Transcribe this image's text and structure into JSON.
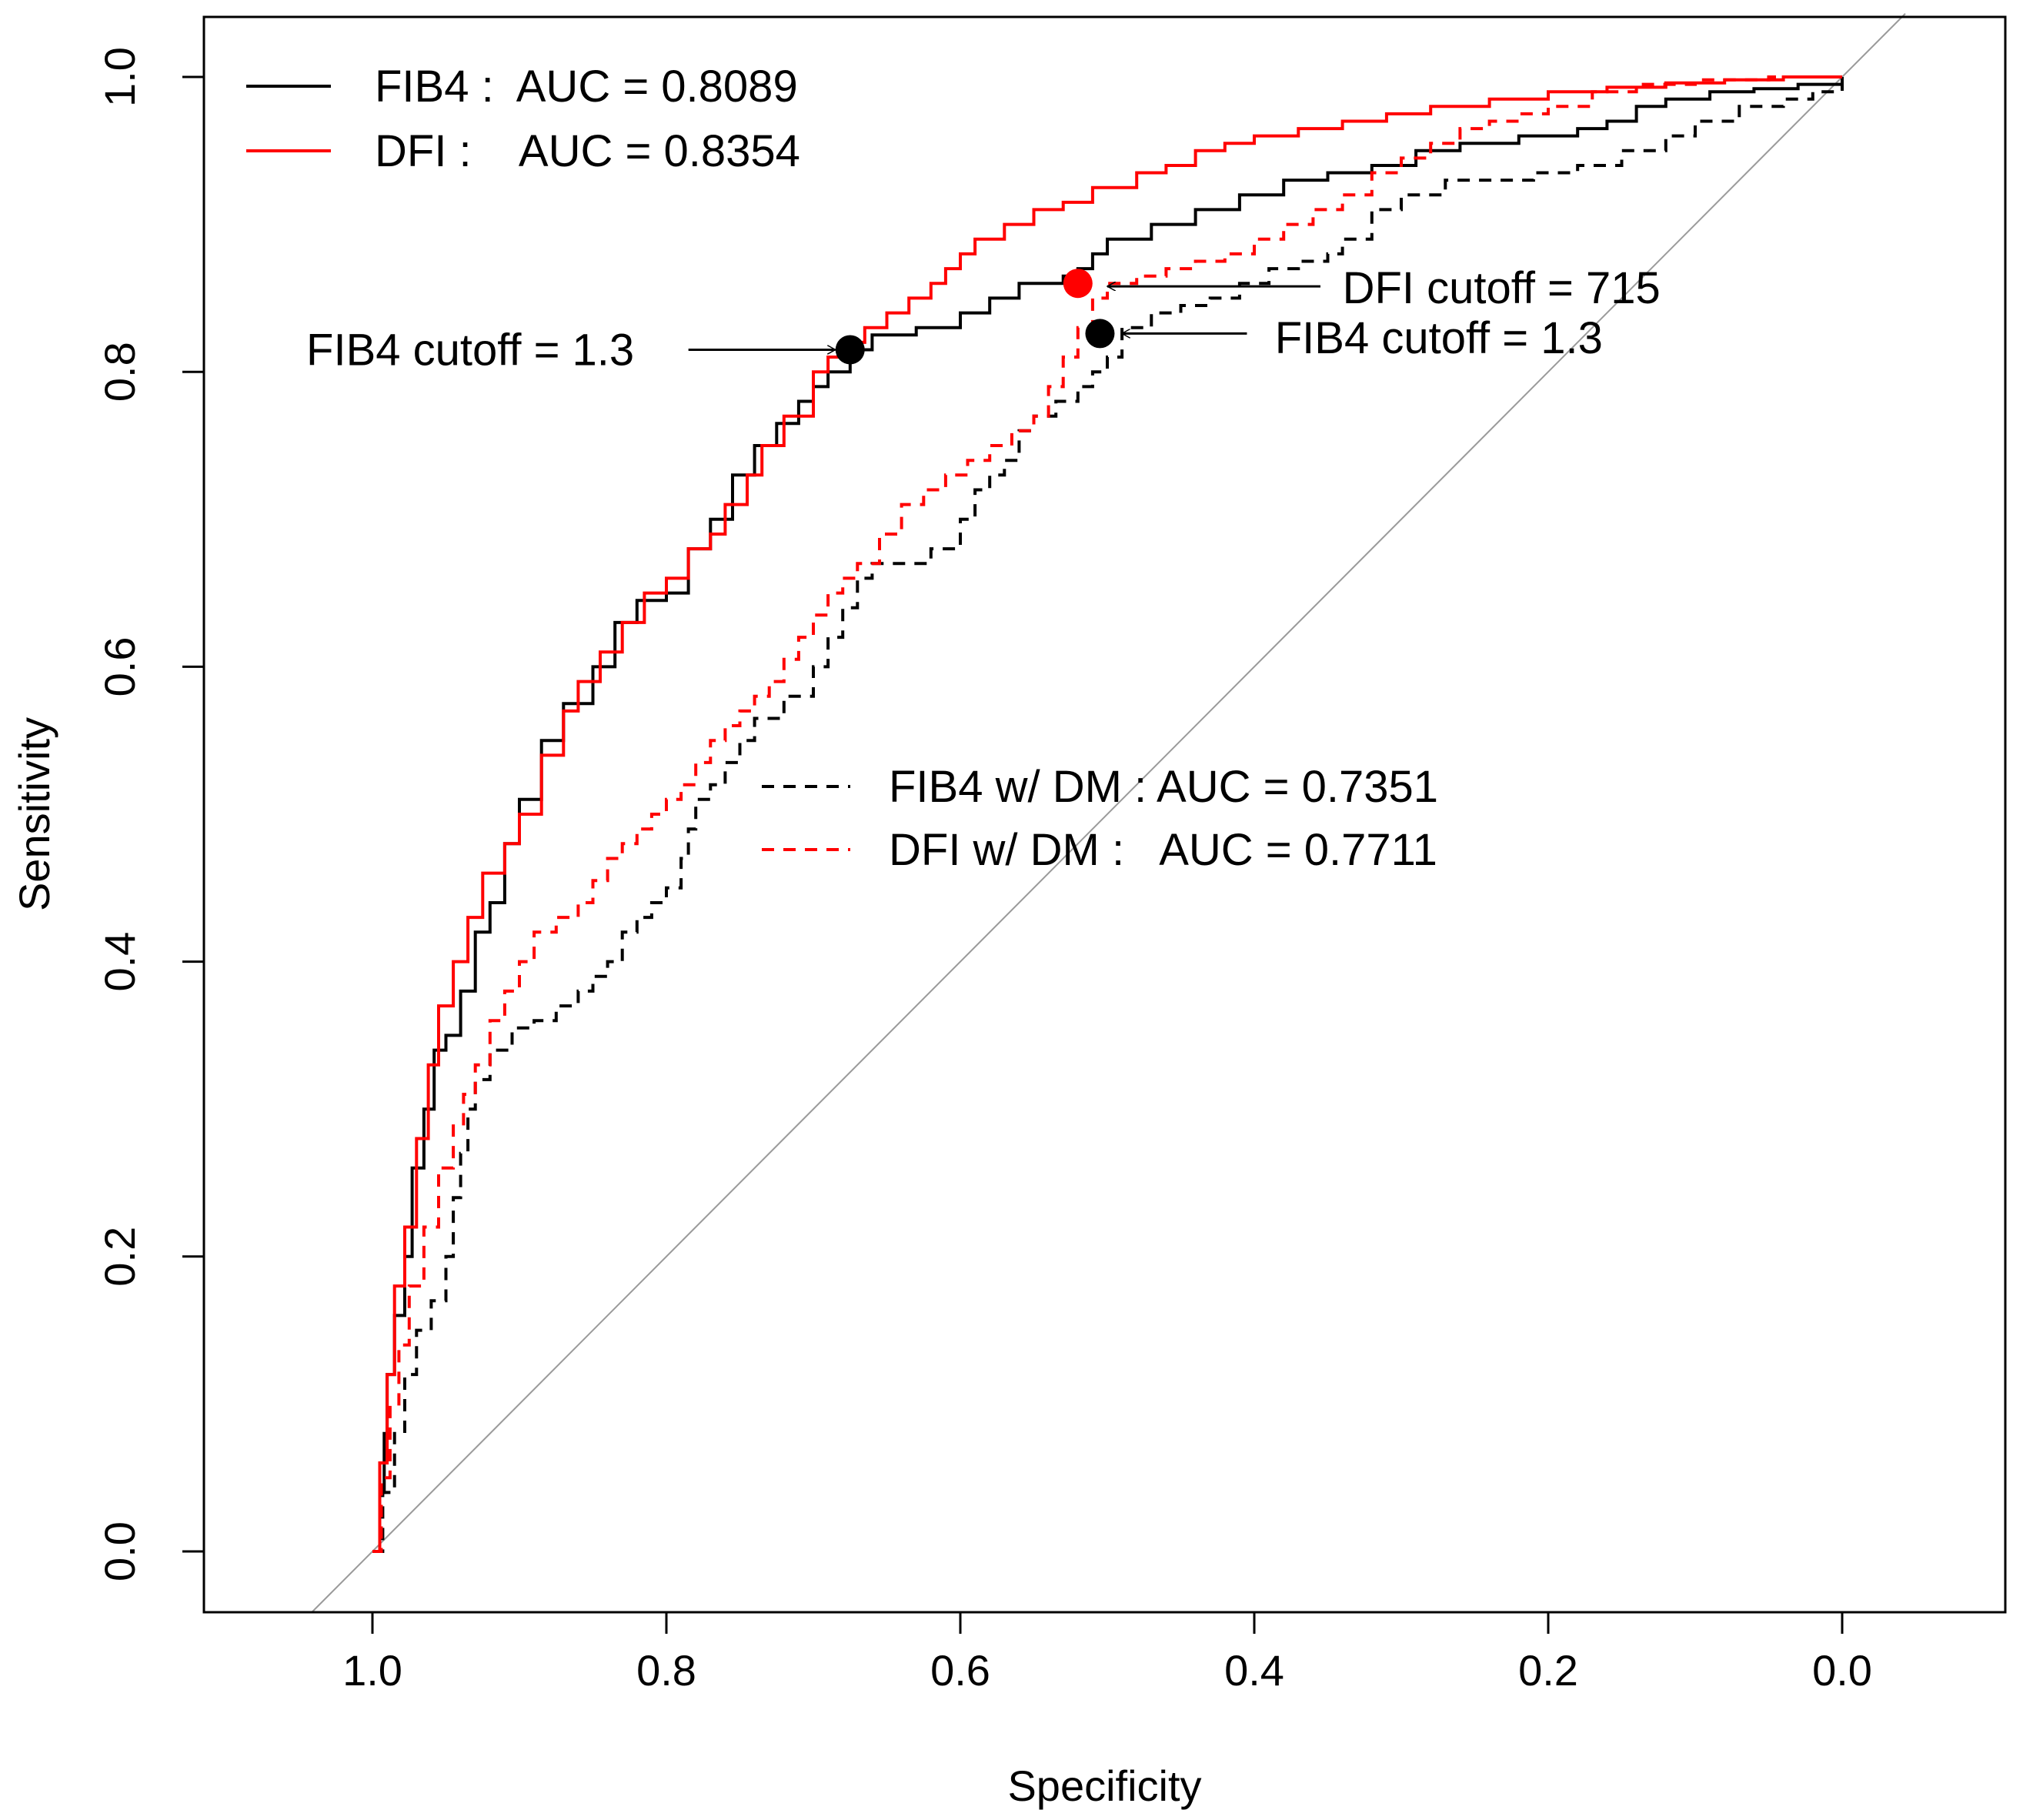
{
  "chart_data": {
    "type": "line",
    "title": "",
    "xlabel": "Specificity",
    "ylabel": "Sensitivity",
    "x_reversed": true,
    "xlim": [
      1.1,
      -0.1
    ],
    "ylim": [
      -0.04,
      1.04
    ],
    "x_ticks": [
      1.0,
      0.8,
      0.6,
      0.4,
      0.2,
      0.0
    ],
    "x_tick_labels": [
      "1.0",
      "0.8",
      "0.6",
      "0.4",
      "0.2",
      "0.0"
    ],
    "y_ticks": [
      0.0,
      0.2,
      0.4,
      0.6,
      0.8,
      1.0
    ],
    "y_tick_labels": [
      "0.0",
      "0.2",
      "0.4",
      "0.6",
      "0.8",
      "1.0"
    ],
    "grid": false,
    "diagonal_reference": true,
    "series": [
      {
        "name": "FIB4",
        "label": "FIB4 :  AUC = 0.8089",
        "color": "#000000",
        "dash": "solid",
        "points": [
          [
            1.0,
            0.0
          ],
          [
            0.995,
            0.04
          ],
          [
            0.992,
            0.08
          ],
          [
            0.99,
            0.12
          ],
          [
            0.985,
            0.16
          ],
          [
            0.978,
            0.2
          ],
          [
            0.973,
            0.26
          ],
          [
            0.965,
            0.3
          ],
          [
            0.958,
            0.34
          ],
          [
            0.95,
            0.35
          ],
          [
            0.94,
            0.38
          ],
          [
            0.93,
            0.42
          ],
          [
            0.92,
            0.44
          ],
          [
            0.91,
            0.48
          ],
          [
            0.9,
            0.51
          ],
          [
            0.885,
            0.55
          ],
          [
            0.87,
            0.575
          ],
          [
            0.85,
            0.6
          ],
          [
            0.835,
            0.63
          ],
          [
            0.82,
            0.645
          ],
          [
            0.8,
            0.65
          ],
          [
            0.785,
            0.68
          ],
          [
            0.77,
            0.7
          ],
          [
            0.755,
            0.73
          ],
          [
            0.74,
            0.75
          ],
          [
            0.725,
            0.765
          ],
          [
            0.71,
            0.78
          ],
          [
            0.7,
            0.79
          ],
          [
            0.69,
            0.8
          ],
          [
            0.675,
            0.815
          ],
          [
            0.66,
            0.825
          ],
          [
            0.63,
            0.83
          ],
          [
            0.6,
            0.84
          ],
          [
            0.58,
            0.85
          ],
          [
            0.56,
            0.86
          ],
          [
            0.53,
            0.865
          ],
          [
            0.52,
            0.87
          ],
          [
            0.51,
            0.88
          ],
          [
            0.5,
            0.89
          ],
          [
            0.47,
            0.9
          ],
          [
            0.44,
            0.91
          ],
          [
            0.41,
            0.92
          ],
          [
            0.38,
            0.93
          ],
          [
            0.35,
            0.935
          ],
          [
            0.32,
            0.94
          ],
          [
            0.29,
            0.95
          ],
          [
            0.26,
            0.955
          ],
          [
            0.22,
            0.96
          ],
          [
            0.18,
            0.965
          ],
          [
            0.16,
            0.97
          ],
          [
            0.14,
            0.98
          ],
          [
            0.12,
            0.985
          ],
          [
            0.09,
            0.99
          ],
          [
            0.06,
            0.992
          ],
          [
            0.03,
            0.995
          ],
          [
            0.0,
            1.0
          ]
        ]
      },
      {
        "name": "DFI",
        "label": "DFI :    AUC = 0.8354",
        "color": "#ff0000",
        "dash": "solid",
        "points": [
          [
            1.0,
            0.0
          ],
          [
            0.995,
            0.06
          ],
          [
            0.99,
            0.12
          ],
          [
            0.985,
            0.18
          ],
          [
            0.978,
            0.22
          ],
          [
            0.97,
            0.28
          ],
          [
            0.962,
            0.33
          ],
          [
            0.955,
            0.37
          ],
          [
            0.945,
            0.4
          ],
          [
            0.935,
            0.43
          ],
          [
            0.925,
            0.46
          ],
          [
            0.91,
            0.48
          ],
          [
            0.9,
            0.5
          ],
          [
            0.885,
            0.54
          ],
          [
            0.87,
            0.57
          ],
          [
            0.86,
            0.59
          ],
          [
            0.845,
            0.61
          ],
          [
            0.83,
            0.63
          ],
          [
            0.815,
            0.65
          ],
          [
            0.8,
            0.66
          ],
          [
            0.785,
            0.68
          ],
          [
            0.77,
            0.69
          ],
          [
            0.76,
            0.71
          ],
          [
            0.745,
            0.73
          ],
          [
            0.735,
            0.75
          ],
          [
            0.72,
            0.77
          ],
          [
            0.7,
            0.8
          ],
          [
            0.69,
            0.81
          ],
          [
            0.68,
            0.82
          ],
          [
            0.665,
            0.83
          ],
          [
            0.65,
            0.84
          ],
          [
            0.635,
            0.85
          ],
          [
            0.62,
            0.86
          ],
          [
            0.61,
            0.87
          ],
          [
            0.6,
            0.88
          ],
          [
            0.59,
            0.89
          ],
          [
            0.57,
            0.9
          ],
          [
            0.55,
            0.91
          ],
          [
            0.53,
            0.915
          ],
          [
            0.51,
            0.925
          ],
          [
            0.48,
            0.935
          ],
          [
            0.46,
            0.94
          ],
          [
            0.44,
            0.95
          ],
          [
            0.42,
            0.955
          ],
          [
            0.4,
            0.96
          ],
          [
            0.37,
            0.965
          ],
          [
            0.34,
            0.97
          ],
          [
            0.31,
            0.975
          ],
          [
            0.28,
            0.98
          ],
          [
            0.24,
            0.985
          ],
          [
            0.2,
            0.99
          ],
          [
            0.16,
            0.993
          ],
          [
            0.12,
            0.996
          ],
          [
            0.08,
            0.998
          ],
          [
            0.04,
            1.0
          ],
          [
            0.0,
            1.0
          ]
        ]
      },
      {
        "name": "FIB4 w/ DM",
        "label": "FIB4 w/ DM : AUC = 0.7351",
        "color": "#000000",
        "dash": "dashed",
        "points": [
          [
            1.0,
            0.0
          ],
          [
            0.993,
            0.04
          ],
          [
            0.985,
            0.08
          ],
          [
            0.978,
            0.12
          ],
          [
            0.97,
            0.15
          ],
          [
            0.96,
            0.17
          ],
          [
            0.95,
            0.2
          ],
          [
            0.945,
            0.24
          ],
          [
            0.94,
            0.27
          ],
          [
            0.935,
            0.3
          ],
          [
            0.93,
            0.32
          ],
          [
            0.92,
            0.34
          ],
          [
            0.905,
            0.355
          ],
          [
            0.89,
            0.36
          ],
          [
            0.875,
            0.37
          ],
          [
            0.86,
            0.38
          ],
          [
            0.85,
            0.39
          ],
          [
            0.84,
            0.4
          ],
          [
            0.83,
            0.42
          ],
          [
            0.82,
            0.43
          ],
          [
            0.81,
            0.44
          ],
          [
            0.8,
            0.45
          ],
          [
            0.79,
            0.47
          ],
          [
            0.785,
            0.49
          ],
          [
            0.78,
            0.51
          ],
          [
            0.77,
            0.52
          ],
          [
            0.76,
            0.535
          ],
          [
            0.75,
            0.55
          ],
          [
            0.74,
            0.565
          ],
          [
            0.72,
            0.58
          ],
          [
            0.7,
            0.6
          ],
          [
            0.69,
            0.62
          ],
          [
            0.68,
            0.64
          ],
          [
            0.67,
            0.66
          ],
          [
            0.66,
            0.67
          ],
          [
            0.64,
            0.67
          ],
          [
            0.62,
            0.68
          ],
          [
            0.6,
            0.7
          ],
          [
            0.59,
            0.72
          ],
          [
            0.58,
            0.73
          ],
          [
            0.57,
            0.74
          ],
          [
            0.56,
            0.76
          ],
          [
            0.55,
            0.77
          ],
          [
            0.535,
            0.78
          ],
          [
            0.52,
            0.79
          ],
          [
            0.51,
            0.8
          ],
          [
            0.5,
            0.81
          ],
          [
            0.49,
            0.83
          ],
          [
            0.47,
            0.84
          ],
          [
            0.45,
            0.845
          ],
          [
            0.43,
            0.85
          ],
          [
            0.41,
            0.86
          ],
          [
            0.39,
            0.87
          ],
          [
            0.37,
            0.875
          ],
          [
            0.35,
            0.88
          ],
          [
            0.34,
            0.89
          ],
          [
            0.32,
            0.91
          ],
          [
            0.3,
            0.92
          ],
          [
            0.27,
            0.93
          ],
          [
            0.24,
            0.93
          ],
          [
            0.21,
            0.935
          ],
          [
            0.18,
            0.94
          ],
          [
            0.15,
            0.95
          ],
          [
            0.12,
            0.96
          ],
          [
            0.1,
            0.97
          ],
          [
            0.07,
            0.98
          ],
          [
            0.04,
            0.985
          ],
          [
            0.02,
            0.99
          ],
          [
            0.0,
            1.0
          ]
        ]
      },
      {
        "name": "DFI w/ DM",
        "label": "DFI w/ DM :   AUC = 0.7711",
        "color": "#ff0000",
        "dash": "dashed",
        "points": [
          [
            1.0,
            0.0
          ],
          [
            0.994,
            0.05
          ],
          [
            0.988,
            0.1
          ],
          [
            0.982,
            0.14
          ],
          [
            0.975,
            0.18
          ],
          [
            0.965,
            0.22
          ],
          [
            0.955,
            0.26
          ],
          [
            0.945,
            0.29
          ],
          [
            0.938,
            0.31
          ],
          [
            0.93,
            0.33
          ],
          [
            0.92,
            0.36
          ],
          [
            0.91,
            0.38
          ],
          [
            0.9,
            0.4
          ],
          [
            0.89,
            0.42
          ],
          [
            0.875,
            0.43
          ],
          [
            0.86,
            0.44
          ],
          [
            0.85,
            0.455
          ],
          [
            0.84,
            0.47
          ],
          [
            0.83,
            0.48
          ],
          [
            0.82,
            0.49
          ],
          [
            0.81,
            0.5
          ],
          [
            0.8,
            0.51
          ],
          [
            0.79,
            0.52
          ],
          [
            0.78,
            0.535
          ],
          [
            0.77,
            0.55
          ],
          [
            0.76,
            0.56
          ],
          [
            0.75,
            0.57
          ],
          [
            0.74,
            0.58
          ],
          [
            0.73,
            0.59
          ],
          [
            0.72,
            0.605
          ],
          [
            0.71,
            0.62
          ],
          [
            0.7,
            0.635
          ],
          [
            0.69,
            0.65
          ],
          [
            0.68,
            0.66
          ],
          [
            0.67,
            0.67
          ],
          [
            0.655,
            0.69
          ],
          [
            0.64,
            0.71
          ],
          [
            0.625,
            0.72
          ],
          [
            0.61,
            0.73
          ],
          [
            0.595,
            0.74
          ],
          [
            0.58,
            0.75
          ],
          [
            0.565,
            0.76
          ],
          [
            0.55,
            0.77
          ],
          [
            0.54,
            0.79
          ],
          [
            0.53,
            0.81
          ],
          [
            0.52,
            0.83
          ],
          [
            0.51,
            0.85
          ],
          [
            0.5,
            0.86
          ],
          [
            0.48,
            0.865
          ],
          [
            0.46,
            0.87
          ],
          [
            0.44,
            0.875
          ],
          [
            0.42,
            0.88
          ],
          [
            0.4,
            0.89
          ],
          [
            0.38,
            0.9
          ],
          [
            0.36,
            0.91
          ],
          [
            0.34,
            0.92
          ],
          [
            0.32,
            0.935
          ],
          [
            0.3,
            0.945
          ],
          [
            0.28,
            0.955
          ],
          [
            0.26,
            0.965
          ],
          [
            0.24,
            0.97
          ],
          [
            0.22,
            0.975
          ],
          [
            0.2,
            0.98
          ],
          [
            0.17,
            0.99
          ],
          [
            0.14,
            0.995
          ],
          [
            0.1,
            0.998
          ],
          [
            0.05,
            1.0
          ],
          [
            0.0,
            1.0
          ]
        ]
      }
    ],
    "markers": [
      {
        "name": "fib4-cutoff-point",
        "x": 0.675,
        "y": 0.815,
        "color": "#000000"
      },
      {
        "name": "dfi-dm-cutoff-point",
        "x": 0.52,
        "y": 0.86,
        "color": "#ff0000"
      },
      {
        "name": "fib4-dm-cutoff-point",
        "x": 0.505,
        "y": 0.826,
        "color": "#000000"
      }
    ],
    "annotations": [
      {
        "name": "fib4-cutoff-annotation",
        "text": "FIB4 cutoff = 1.3",
        "text_x": 1.045,
        "text_y": 0.815,
        "anchor": "start",
        "arrow_from": [
          0.785,
          0.815
        ],
        "arrow_to": [
          0.685,
          0.815
        ]
      },
      {
        "name": "dfi-cutoff-annotation",
        "text": "DFI cutoff = 715",
        "text_x": 0.34,
        "text_y": 0.857,
        "anchor": "start",
        "arrow_from": [
          0.355,
          0.858
        ],
        "arrow_to": [
          0.5,
          0.858
        ]
      },
      {
        "name": "fib4-dm-cutoff-annotation",
        "text": "FIB4 cutoff = 1.3",
        "text_x": 0.386,
        "text_y": 0.823,
        "anchor": "start",
        "arrow_from": [
          0.405,
          0.826
        ],
        "arrow_to": [
          0.49,
          0.826
        ]
      }
    ],
    "legends": [
      {
        "name": "legend-top",
        "placement": "top-left",
        "entries": [
          0,
          1
        ]
      },
      {
        "name": "legend-middle",
        "placement": "center",
        "entries": [
          2,
          3
        ]
      }
    ]
  }
}
